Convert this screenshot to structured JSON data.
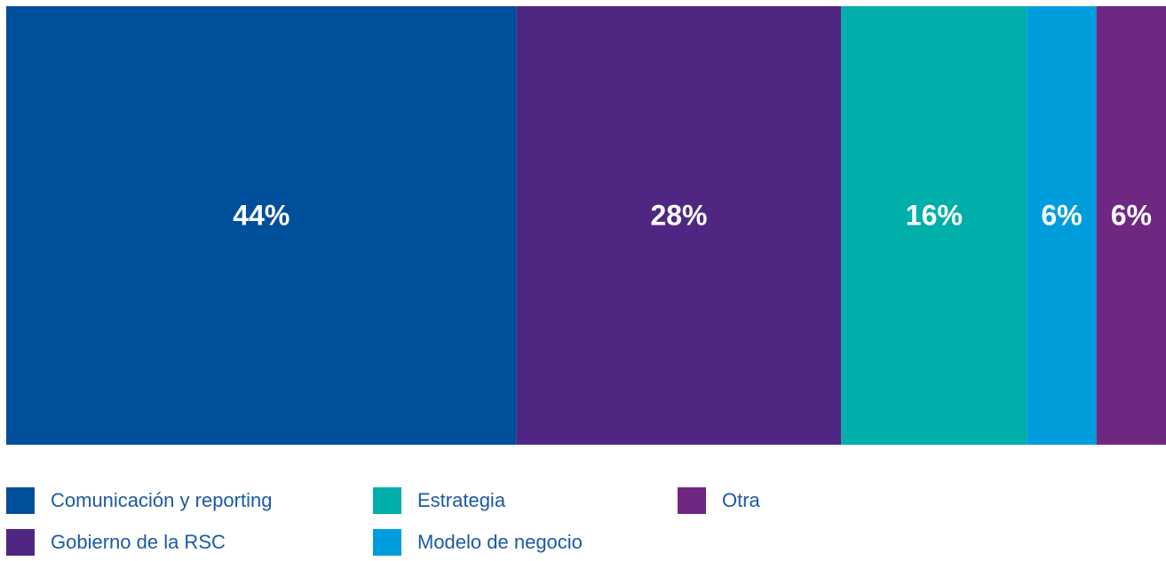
{
  "chart_data": {
    "type": "bar",
    "orientation": "horizontal",
    "stacked": true,
    "xlim": [
      0,
      100
    ],
    "series": [
      {
        "name": "Comunicación y reporting",
        "color": "#004f9a",
        "values": [
          44
        ],
        "value_labels": [
          "44%"
        ]
      },
      {
        "name": "Gobierno de la RSC",
        "color": "#4f2783",
        "values": [
          28
        ],
        "value_labels": [
          "28%"
        ]
      },
      {
        "name": "Estrategia",
        "color": "#00afaa",
        "values": [
          16
        ],
        "value_labels": [
          "16%"
        ]
      },
      {
        "name": "Modelo de negocio",
        "color": "#009ddc",
        "values": [
          6
        ],
        "value_labels": [
          "6%"
        ]
      },
      {
        "name": "Otra",
        "color": "#6e2882",
        "values": [
          6
        ],
        "value_labels": [
          "6%"
        ]
      }
    ],
    "legend": "bottom"
  }
}
